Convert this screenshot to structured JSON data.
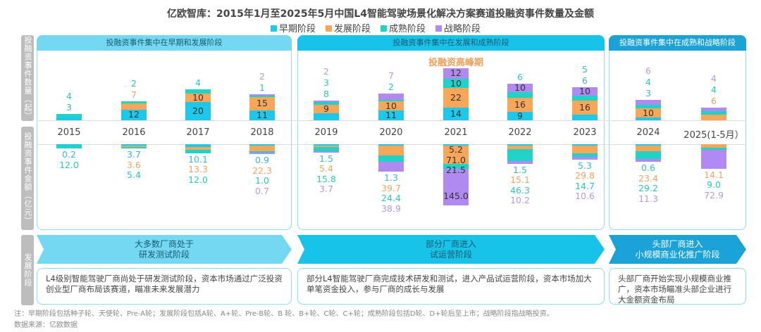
{
  "chart_data": {
    "type": "bar",
    "title": "亿欧智库：2015年1月至2025年5月中国L4智能驾驶场景化解决方案赛道投融资事件数量及金额",
    "categories": [
      "2015",
      "2016",
      "2017",
      "2018",
      "2019",
      "2020",
      "2021",
      "2022",
      "2023",
      "2024",
      "2025(1-5月）"
    ],
    "legend": [
      "早期阶段",
      "发展阶段",
      "成熟阶段",
      "战略阶段"
    ],
    "legend_position": "top",
    "colors": {
      "bar": [
        "#1ec8ea",
        "#f8a65a",
        "#1fd3c6",
        "#b08af0"
      ],
      "label": [
        "#3ab6d6",
        "#f0a462",
        "#2cc6bb",
        "#b39ae0"
      ]
    },
    "counts": {
      "ylabel": "投融资事件数量（起）",
      "series": [
        {
          "name": "早期阶段",
          "values": [
            3,
            12,
            20,
            11,
            8,
            11,
            14,
            9,
            6,
            3,
            0
          ]
        },
        {
          "name": "发展阶段",
          "values": [
            0,
            7,
            10,
            15,
            9,
            10,
            22,
            16,
            16,
            10,
            6
          ]
        },
        {
          "name": "成熟阶段",
          "values": [
            4,
            2,
            4,
            1,
            3,
            2,
            10,
            6,
            5,
            4,
            4
          ]
        },
        {
          "name": "战略阶段",
          "values": [
            0,
            0,
            0,
            2,
            2,
            7,
            12,
            10,
            10,
            6,
            4
          ]
        }
      ]
    },
    "amounts": {
      "ylabel": "投融资事件金额（亿元）",
      "series": [
        {
          "name": "早期阶段",
          "values": [
            0.2,
            3.7,
            10.1,
            0.9,
            1.5,
            1.3,
            5.2,
            1.5,
            5.3,
            0.6,
            0
          ]
        },
        {
          "name": "发展阶段",
          "values": [
            0,
            3.6,
            13.3,
            22.3,
            5.4,
            39.7,
            71.0,
            15.1,
            29.8,
            23.4,
            14.1
          ]
        },
        {
          "name": "成熟阶段",
          "values": [
            12.0,
            5.4,
            12.0,
            1.0,
            15.8,
            24.4,
            21.5,
            46.3,
            14.7,
            29.2,
            9.0
          ]
        },
        {
          "name": "战略阶段",
          "values": [
            0,
            0,
            0,
            0.7,
            3.7,
            38.9,
            145.0,
            10.2,
            10.6,
            11.3,
            72.9
          ]
        }
      ]
    },
    "annotation": "投融资高峰期"
  },
  "side_labels": [
    "投融资事件数量（起）",
    "投融资事件金额（亿元）",
    "发展阶段"
  ],
  "panels": [
    {
      "header": "投融资事件集中在早期和发展阶段",
      "color": "#74d8f2",
      "arrow": "大多数厂商处于\n研发测试阶段",
      "desc": "L4级别智能驾驶厂商尚处于研发测试阶段，资本市场通过广泛投资创业型厂商布局该赛道，瞄准未来发展潜力"
    },
    {
      "header": "投融资事件集中在发展和成熟阶段",
      "color": "#18c3ea",
      "arrow": "部分厂商进入\n试运营阶段",
      "desc": "部分L4智能驾驶厂商完成技术研发和测试，进入产品试运营阶段，资本市场加大单笔资金投入，参与厂商的成长与发展"
    },
    {
      "header": "投融资事件集中在成熟和战略阶段",
      "color": "#1ba3d8",
      "arrow": "头部厂商进入\n小规模商业化推广阶段",
      "desc": "头部厂商开始实现小规模商业推广，资本市场瞄准头部企业进行大金额资金布局"
    }
  ],
  "note": "注：早期阶段包括种子轮、天使轮、Pre-A轮；发展阶段包括A轮、A+轮、Pre-B轮、B 轮、B+轮、C轮、C+轮；成熟阶段包括D轮、D+轮后至上市；战略阶段指战略投资。",
  "source": "数据来源：亿欧数据"
}
